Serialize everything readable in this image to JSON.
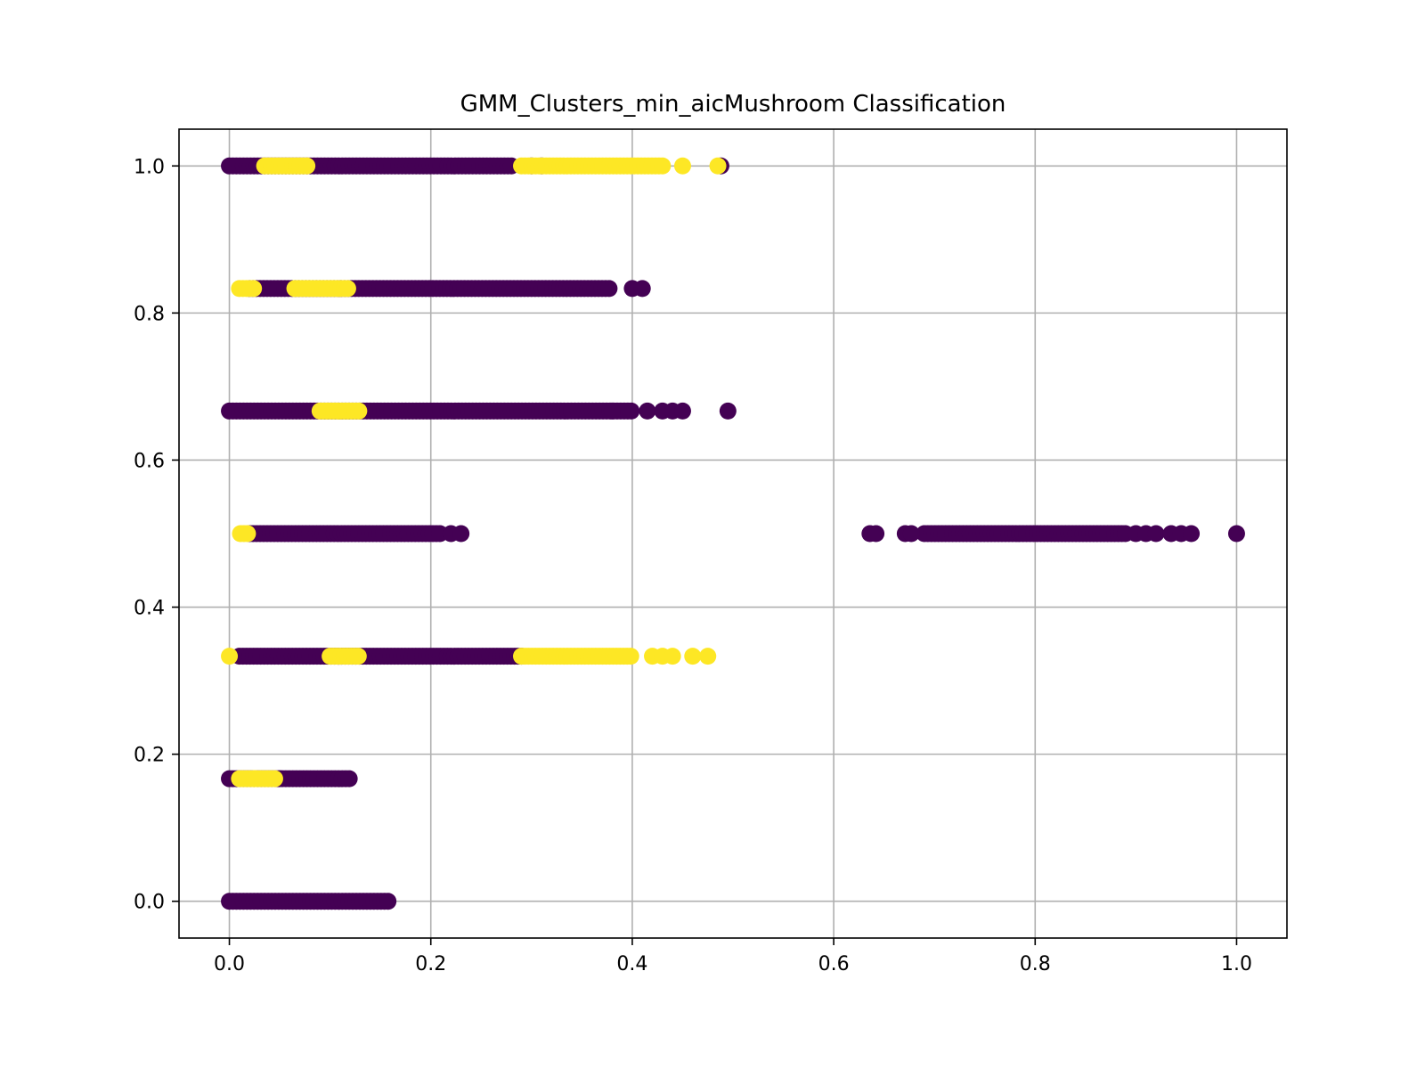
{
  "chart_data": {
    "type": "scatter",
    "title": "GMM_Clusters_min_aicMushroom Classification",
    "xlabel": "",
    "ylabel": "",
    "xlim": [
      -0.05,
      1.05
    ],
    "ylim": [
      -0.05,
      1.05
    ],
    "x_ticks": [
      "0.0",
      "0.2",
      "0.4",
      "0.6",
      "0.8",
      "1.0"
    ],
    "x_tick_values": [
      0.0,
      0.2,
      0.4,
      0.6,
      0.8,
      1.0
    ],
    "y_ticks": [
      "0.0",
      "0.2",
      "0.4",
      "0.6",
      "0.8",
      "1.0"
    ],
    "y_tick_values": [
      0.0,
      0.2,
      0.4,
      0.6,
      0.8,
      1.0
    ],
    "grid": true,
    "legend": "none",
    "colors": {
      "cluster_0": "#440154",
      "cluster_1": "#fde725",
      "grid": "#b0b0b0",
      "axis": "#000000"
    },
    "series": [
      {
        "color": "#440154",
        "segments": [
          {
            "y": 1.0,
            "x_start": 0.0,
            "x_end": 0.28
          },
          {
            "y": 0.8333,
            "x_start": 0.02,
            "x_end": 0.38
          },
          {
            "y": 0.6667,
            "x_start": 0.0,
            "x_end": 0.4
          },
          {
            "y": 0.5,
            "x_start": 0.02,
            "x_end": 0.21
          },
          {
            "y": 0.5,
            "x_start": 0.69,
            "x_end": 0.89
          },
          {
            "y": 0.3333,
            "x_start": 0.01,
            "x_end": 0.29
          },
          {
            "y": 0.1667,
            "x_start": 0.0,
            "x_end": 0.12
          },
          {
            "y": 0.0,
            "x_start": 0.0,
            "x_end": 0.16
          }
        ],
        "points": [
          {
            "x": 0.3,
            "y": 1.0
          },
          {
            "x": 0.31,
            "y": 1.0
          },
          {
            "x": 0.488,
            "y": 1.0
          },
          {
            "x": 0.4,
            "y": 0.8333
          },
          {
            "x": 0.41,
            "y": 0.8333
          },
          {
            "x": 0.11,
            "y": 0.8333
          },
          {
            "x": 0.415,
            "y": 0.6667
          },
          {
            "x": 0.43,
            "y": 0.6667
          },
          {
            "x": 0.44,
            "y": 0.6667
          },
          {
            "x": 0.45,
            "y": 0.6667
          },
          {
            "x": 0.495,
            "y": 0.6667
          },
          {
            "x": 0.38,
            "y": 0.6667
          },
          {
            "x": 0.22,
            "y": 0.5
          },
          {
            "x": 0.23,
            "y": 0.5
          },
          {
            "x": 0.636,
            "y": 0.5
          },
          {
            "x": 0.642,
            "y": 0.5
          },
          {
            "x": 0.671,
            "y": 0.5
          },
          {
            "x": 0.677,
            "y": 0.5
          },
          {
            "x": 0.9,
            "y": 0.5
          },
          {
            "x": 0.91,
            "y": 0.5
          },
          {
            "x": 0.92,
            "y": 0.5
          },
          {
            "x": 0.935,
            "y": 0.5
          },
          {
            "x": 0.945,
            "y": 0.5
          },
          {
            "x": 0.955,
            "y": 0.5
          },
          {
            "x": 1.0,
            "y": 0.5
          },
          {
            "x": 0.05,
            "y": 0.1667
          }
        ]
      },
      {
        "color": "#fde725",
        "segments": [
          {
            "y": 1.0,
            "x_start": 0.29,
            "x_end": 0.43
          },
          {
            "y": 1.0,
            "x_start": 0.035,
            "x_end": 0.08
          },
          {
            "y": 0.8333,
            "x_start": 0.01,
            "x_end": 0.025
          },
          {
            "y": 0.8333,
            "x_start": 0.065,
            "x_end": 0.12
          },
          {
            "y": 0.6667,
            "x_start": 0.09,
            "x_end": 0.13
          },
          {
            "y": 0.5,
            "x_start": 0.011,
            "x_end": 0.02
          },
          {
            "y": 0.3333,
            "x_start": 0.29,
            "x_end": 0.4
          },
          {
            "y": 0.3333,
            "x_start": 0.1,
            "x_end": 0.13
          },
          {
            "y": 0.1667,
            "x_start": 0.01,
            "x_end": 0.045
          }
        ],
        "points": [
          {
            "x": 0.45,
            "y": 1.0
          },
          {
            "x": 0.485,
            "y": 1.0
          },
          {
            "x": 0.0,
            "y": 0.3333
          },
          {
            "x": 0.42,
            "y": 0.3333
          },
          {
            "x": 0.43,
            "y": 0.3333
          },
          {
            "x": 0.44,
            "y": 0.3333
          },
          {
            "x": 0.46,
            "y": 0.3333
          },
          {
            "x": 0.475,
            "y": 0.3333
          },
          {
            "x": 0.025,
            "y": 0.1667
          }
        ]
      }
    ]
  }
}
